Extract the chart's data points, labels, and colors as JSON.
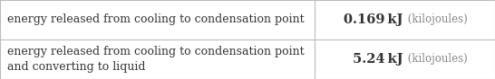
{
  "rows": [
    {
      "label": "energy released from cooling to condensation point",
      "value": "0.169",
      "unit_bold": "kJ",
      "unit_light": " (kilojoules)"
    },
    {
      "label": "energy released from cooling to condensation point\nand converting to liquid",
      "value": "5.24",
      "unit_bold": "kJ",
      "unit_light": " (kilojoules)"
    }
  ],
  "col_split": 0.635,
  "background_color": "#f7f7f7",
  "cell_bg": "#ffffff",
  "border_color": "#bbbbbb",
  "text_color": "#333333",
  "light_text_color": "#888888",
  "label_fontsize": 9.0,
  "value_fontsize": 10.5,
  "unit_small_fontsize": 8.5,
  "font_family": "DejaVu Serif"
}
